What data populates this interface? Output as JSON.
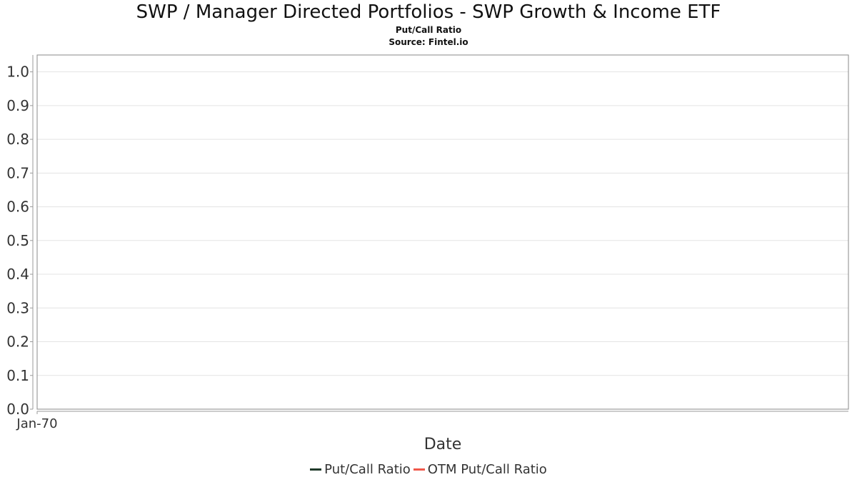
{
  "chart_data": {
    "type": "line",
    "title": "SWP / Manager Directed Portfolios - SWP Growth & Income ETF",
    "subtitle": "Put/Call Ratio",
    "source": "Source: Fintel.io",
    "xlabel": "Date",
    "ylabel": "",
    "x_ticks": [
      "Jan-70"
    ],
    "y_ticks": [
      "0.0",
      "0.1",
      "0.2",
      "0.3",
      "0.4",
      "0.5",
      "0.6",
      "0.7",
      "0.8",
      "0.9",
      "1.0"
    ],
    "ylim": [
      0,
      1.05
    ],
    "grid": true,
    "legend_position": "bottom",
    "series": [
      {
        "name": "Put/Call Ratio",
        "color": "#1f3a2a",
        "values": []
      },
      {
        "name": "OTM Put/Call Ratio",
        "color": "#f0584a",
        "values": []
      }
    ]
  }
}
